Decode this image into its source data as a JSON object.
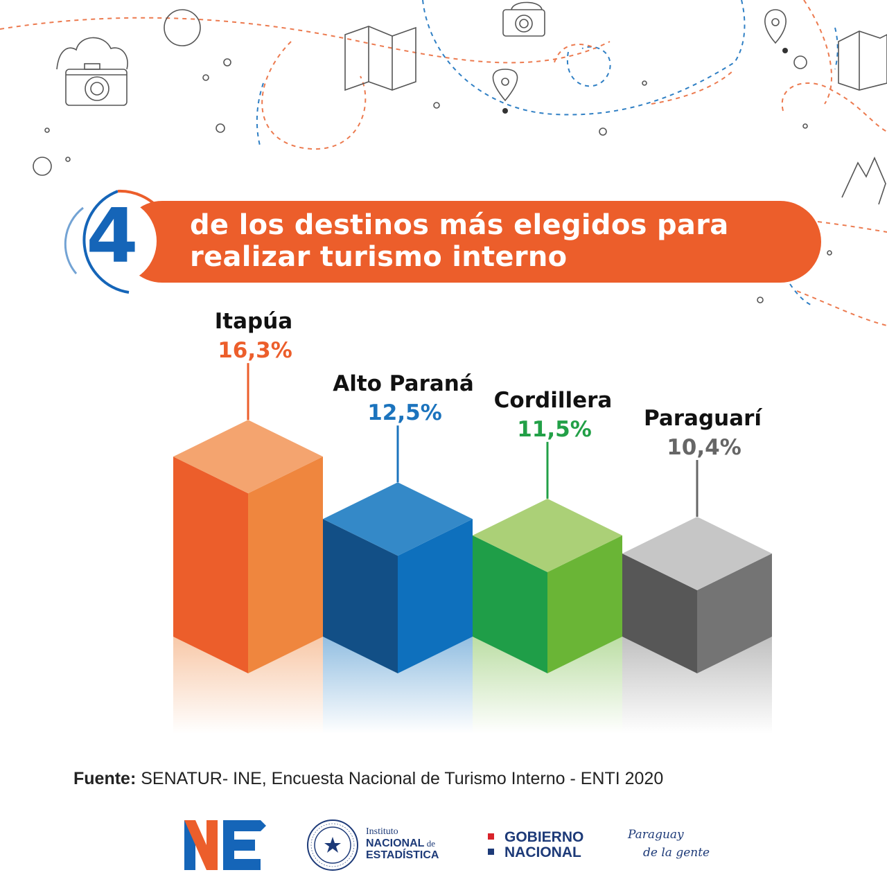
{
  "header": {
    "number": "4",
    "title_line1": "de los destinos más elegidos para",
    "title_line2": "realizar turismo interno"
  },
  "colors": {
    "banner": "#ec5e2b",
    "accent_blue": "#1565b8",
    "navy": "#1d3a78"
  },
  "chart_data": {
    "type": "bar",
    "categories": [
      "Itapúa",
      "Alto Paraná",
      "Cordillera",
      "Paraguarí"
    ],
    "values": [
      16.3,
      12.5,
      11.5,
      10.4
    ],
    "value_labels": [
      "16,3%",
      "12,5%",
      "11,5%",
      "10,4%"
    ],
    "colors": [
      {
        "left": "#ec5e2b",
        "right": "#ef863e",
        "top": "#f4a46f",
        "label": "#ec5e2b"
      },
      {
        "left": "#124f86",
        "right": "#0e70bd",
        "top": "#3489c8",
        "label": "#1b73bd"
      },
      {
        "left": "#1f9e48",
        "right": "#6ab536",
        "top": "#abd077",
        "label": "#22a047"
      },
      {
        "left": "#575757",
        "right": "#747474",
        "top": "#c6c6c6",
        "label": "#666666"
      }
    ]
  },
  "footer": {
    "source_label": "Fuente:",
    "source_text": " SENATUR- INE, Encuesta Nacional de Turismo Interno - ENTI 2020"
  },
  "logos": {
    "ine_line1": "Instituto",
    "ine_line2": "NACIONAL",
    "ine_line2_small": " de",
    "ine_line3": "ESTADÍSTICA",
    "gob_line1": "GOBIERNO",
    "gob_line2": "NACIONAL",
    "py_line1": "Paraguay",
    "py_line2": "de la gente"
  }
}
